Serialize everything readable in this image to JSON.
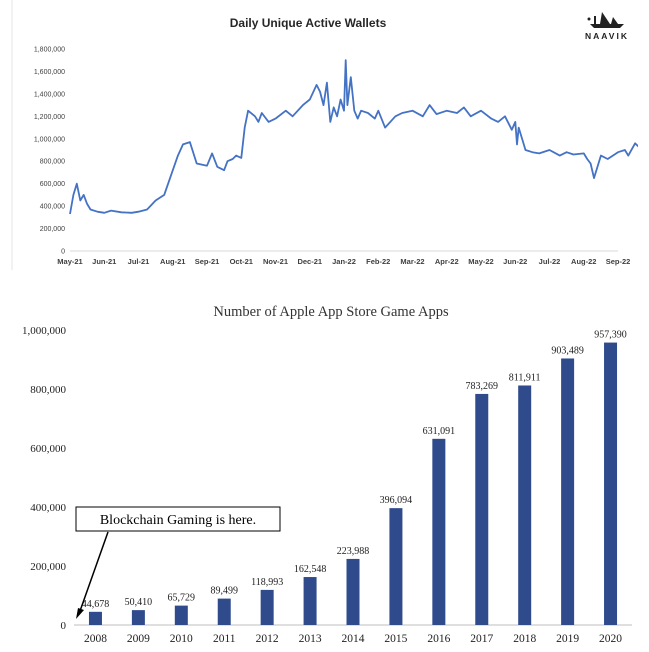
{
  "chart_data": [
    {
      "type": "line",
      "title": "Daily Unique Active Wallets",
      "brand": "NAAVIK",
      "x_ticks": [
        "May-21",
        "Jun-21",
        "Jul-21",
        "Aug-21",
        "Sep-21",
        "Oct-21",
        "Nov-21",
        "Dec-21",
        "Jan-22",
        "Feb-22",
        "Mar-22",
        "Apr-22",
        "May-22",
        "Jun-22",
        "Jul-22",
        "Aug-22",
        "Sep-22"
      ],
      "y_ticks": [
        "0",
        "200,000",
        "400,000",
        "600,000",
        "800,000",
        "1,000,000",
        "1,200,000",
        "1,400,000",
        "1,600,000",
        "1,800,000"
      ],
      "ylim": [
        0,
        1800000
      ],
      "grid": false,
      "line_color": "#4472c4",
      "series": [
        {
          "x": [
            0,
            0.1,
            0.2,
            0.3,
            0.4,
            0.5,
            0.6,
            0.8,
            1,
            1.2,
            1.5,
            1.8,
            2,
            2.25,
            2.5,
            2.75,
            3,
            3.15,
            3.3,
            3.5,
            3.7,
            4,
            4.15,
            4.3,
            4.5,
            4.6,
            4.75,
            4.85,
            5,
            5.1,
            5.2,
            5.4,
            5.5,
            5.6,
            5.8,
            6,
            6.3,
            6.5,
            6.8,
            7,
            7.2,
            7.3,
            7.4,
            7.5,
            7.6,
            7.7,
            7.8,
            7.9,
            8,
            8.05,
            8.1,
            8.2,
            8.3,
            8.4,
            8.5,
            8.7,
            8.9,
            9,
            9.2,
            9.5,
            9.7,
            10,
            10.3,
            10.5,
            10.7,
            11,
            11.3,
            11.5,
            11.7,
            12,
            12.3,
            12.5,
            12.7,
            12.9,
            13,
            13.05,
            13.1,
            13.3,
            13.5,
            13.7,
            14,
            14.3,
            14.5,
            14.7,
            15,
            15.1,
            15.2,
            15.3,
            15.5,
            15.7,
            16,
            16.2,
            16.3,
            16.5,
            16.7,
            17
          ],
          "y": [
            330000,
            500000,
            600000,
            450000,
            500000,
            420000,
            370000,
            350000,
            340000,
            360000,
            345000,
            340000,
            350000,
            370000,
            450000,
            500000,
            720000,
            850000,
            950000,
            970000,
            780000,
            760000,
            870000,
            750000,
            720000,
            800000,
            820000,
            850000,
            830000,
            1100000,
            1250000,
            1200000,
            1150000,
            1230000,
            1150000,
            1180000,
            1250000,
            1200000,
            1300000,
            1350000,
            1480000,
            1420000,
            1300000,
            1500000,
            1150000,
            1280000,
            1200000,
            1350000,
            1250000,
            1700000,
            1300000,
            1550000,
            1250000,
            1180000,
            1250000,
            1230000,
            1180000,
            1250000,
            1100000,
            1200000,
            1230000,
            1250000,
            1200000,
            1300000,
            1220000,
            1250000,
            1230000,
            1280000,
            1200000,
            1250000,
            1180000,
            1150000,
            1200000,
            1080000,
            1150000,
            950000,
            1100000,
            900000,
            880000,
            870000,
            900000,
            850000,
            880000,
            860000,
            870000,
            820000,
            780000,
            650000,
            850000,
            820000,
            880000,
            900000,
            850000,
            960000,
            900000,
            950000
          ]
        }
      ]
    },
    {
      "type": "bar",
      "title": "Number of Apple App Store Game Apps",
      "categories": [
        "2008",
        "2009",
        "2010",
        "2011",
        "2012",
        "2013",
        "2014",
        "2015",
        "2016",
        "2017",
        "2018",
        "2019",
        "2020"
      ],
      "values": [
        44678,
        50410,
        65729,
        89499,
        118993,
        162548,
        223988,
        396094,
        631091,
        783269,
        811911,
        903489,
        957390
      ],
      "value_labels": [
        "44,678",
        "50,410",
        "65,729",
        "89,499",
        "118,993",
        "162,548",
        "223,988",
        "396,094",
        "631,091",
        "783,269",
        "811,911",
        "903,489",
        "957,390"
      ],
      "y_ticks": [
        "0",
        "200,000",
        "400,000",
        "600,000",
        "800,000",
        "1,000,000"
      ],
      "ylim": [
        0,
        1000000
      ],
      "grid": false,
      "bar_color": "#2f4b8c",
      "annotation": "Blockchain Gaming is here."
    }
  ]
}
